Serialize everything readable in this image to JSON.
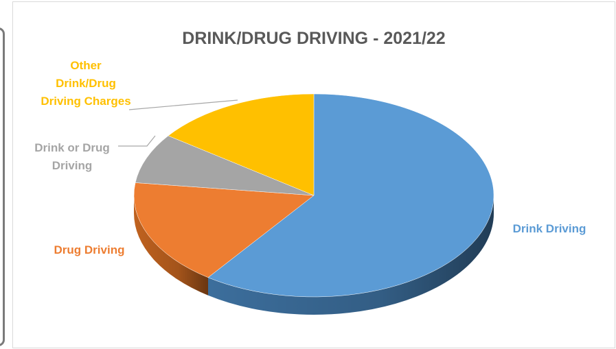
{
  "chart_data": {
    "type": "pie",
    "title": "DRINK/DRUG DRIVING - 2021/22",
    "slices": [
      {
        "label": "Drink Driving",
        "value": 60,
        "color": "#5b9bd5",
        "side": "#3c6e9c",
        "label_lines": [
          "Drink Driving"
        ],
        "label_color": "#5b9bd5"
      },
      {
        "label": "Drug Driving",
        "value": 17,
        "color": "#ed7d31",
        "side": "#c0621f",
        "label_lines": [
          "Drug Driving"
        ],
        "label_color": "#ed7d31"
      },
      {
        "label": "Drink or Drug Driving",
        "value": 8,
        "color": "#a5a5a5",
        "side": "#7f7f7f",
        "label_lines": [
          "Drink or Drug",
          "Driving"
        ],
        "label_color": "#a5a5a5"
      },
      {
        "label": "Other Drink/Drug Driving Charges",
        "value": 15,
        "color": "#ffc000",
        "side": "#c79500",
        "label_lines": [
          "Other",
          "Drink/Drug",
          "Driving Charges"
        ],
        "label_color": "#ffc000"
      }
    ],
    "style": "3d-pie",
    "legend": "none"
  }
}
